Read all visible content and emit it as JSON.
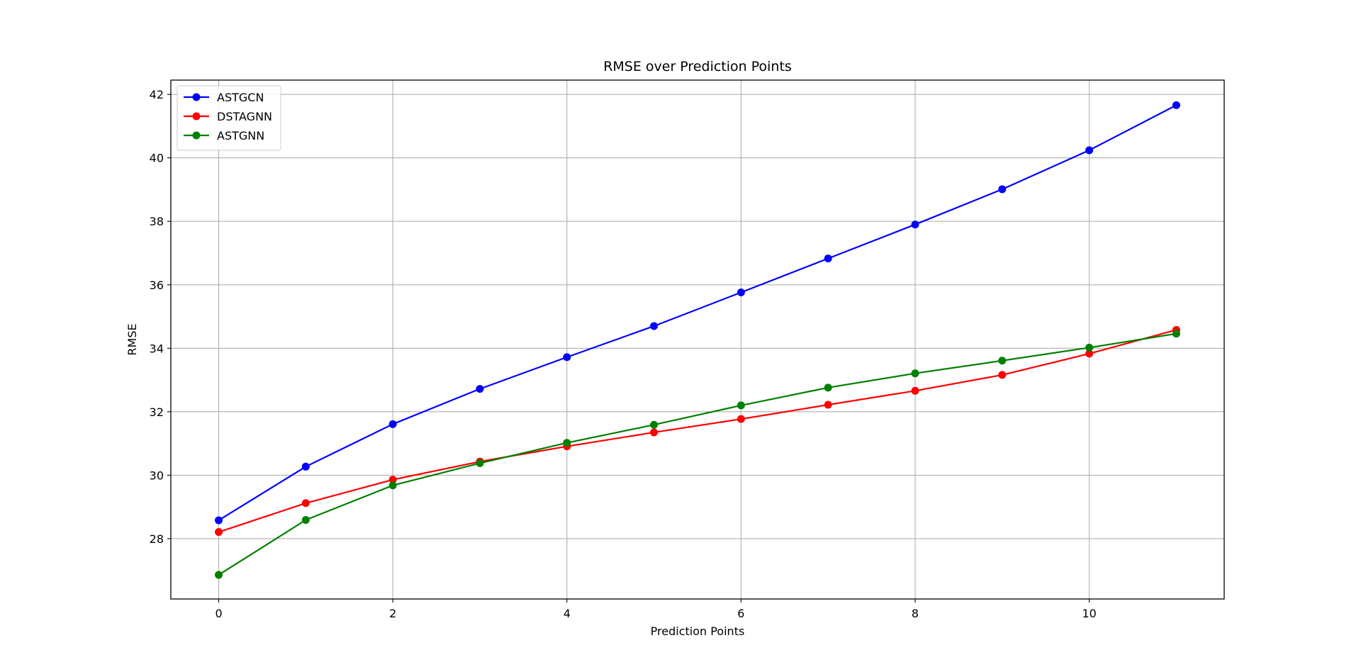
{
  "chart_data": {
    "type": "line",
    "title": "RMSE over Prediction Points",
    "xlabel": "Prediction Points",
    "ylabel": "RMSE",
    "x": [
      0,
      1,
      2,
      3,
      4,
      5,
      6,
      7,
      8,
      9,
      10,
      11
    ],
    "xlim": [
      -0.55,
      11.55
    ],
    "ylim": [
      26.1,
      42.45
    ],
    "xticks": [
      0,
      2,
      4,
      6,
      8,
      10
    ],
    "yticks": [
      28,
      30,
      32,
      34,
      36,
      38,
      40,
      42
    ],
    "grid": true,
    "legend_position": "upper-left",
    "marker": "circle",
    "series": [
      {
        "name": "ASTGCN",
        "color": "#0000ff",
        "values": [
          28.58,
          30.27,
          31.61,
          32.72,
          33.72,
          34.7,
          35.76,
          36.83,
          37.9,
          39.01,
          40.24,
          41.66
        ]
      },
      {
        "name": "DSTAGNN",
        "color": "#ff0000",
        "values": [
          28.21,
          29.12,
          29.86,
          30.43,
          30.91,
          31.35,
          31.77,
          32.22,
          32.66,
          33.16,
          33.83,
          34.58
        ]
      },
      {
        "name": "ASTGNN",
        "color": "#008000",
        "values": [
          26.86,
          28.59,
          29.68,
          30.38,
          31.02,
          31.59,
          32.2,
          32.76,
          33.21,
          33.61,
          34.02,
          34.46
        ]
      }
    ]
  }
}
